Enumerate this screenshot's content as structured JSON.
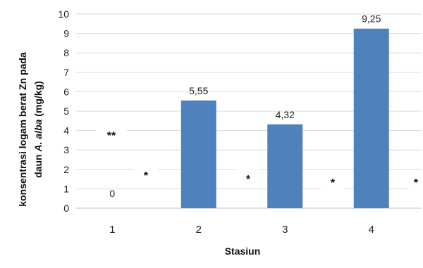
{
  "chart_data": {
    "type": "bar",
    "categories": [
      "1",
      "2",
      "3",
      "4"
    ],
    "values": [
      0,
      5.55,
      4.32,
      9.25
    ],
    "data_labels": [
      "0",
      "5,55",
      "4,32",
      "9,25"
    ],
    "y_ticks": [
      "0",
      "1",
      "2",
      "3",
      "4",
      "5",
      "6",
      "7",
      "8",
      "9",
      "10"
    ],
    "ylim": [
      0,
      10
    ],
    "xlabel": "Stasiun",
    "ylabel_line1": "konsentrasi logam berat Zn pada",
    "ylabel_line2_prefix": "daun",
    "ylabel_line2_species": "A. alba",
    "ylabel_line2_unit": "(mg/kg)",
    "annotations": [
      "**",
      "*",
      "*",
      "*",
      "*"
    ],
    "grid": true,
    "bar_color": "#4f81bd",
    "grid_color": "#d9d9d9"
  }
}
